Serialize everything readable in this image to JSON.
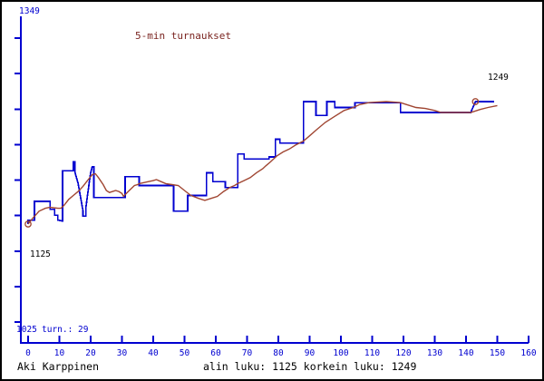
{
  "window": {
    "background": "#ffffff",
    "border_color": "#000000"
  },
  "header": {
    "title": "5-min turnaukset"
  },
  "labels": {
    "y_axis_max": "1349",
    "y_axis_min": "1025",
    "tournaments": "turn.: 29",
    "min_value_annotation": "1125",
    "last_value_annotation": "1249"
  },
  "footer": {
    "player_name": "Aki Karppinen",
    "stats": "alin luku: 1125 korkein luku: 1249"
  },
  "colors": {
    "axis_blue": "#0000d0",
    "series_blue": "#0000d0",
    "series_brown": "#a04632",
    "title_maroon": "#7a2420",
    "text_black": "#000000"
  },
  "chart_data": {
    "type": "line",
    "title": "5-min turnaukset",
    "xlabel": "",
    "ylabel": "",
    "x_axis": {
      "min": 0,
      "max": 160,
      "tick_step": 10,
      "tick_labels": [
        "0",
        "10",
        "20",
        "30",
        "40",
        "50",
        "60",
        "70",
        "80",
        "90",
        "100",
        "110",
        "120",
        "130",
        "140",
        "150",
        "160"
      ]
    },
    "y_axis": {
      "min": 1025,
      "max": 1349,
      "labeled_values": [
        1025,
        1125,
        1349
      ]
    },
    "min_rating": 1125,
    "max_rating": 1249,
    "final_rating": 1249,
    "tournament_count": 29,
    "grid": false,
    "series": [
      {
        "name": "rating",
        "color": "#0000d0",
        "points": [
          [
            0,
            1125
          ],
          [
            0,
            1129
          ],
          [
            2,
            1129
          ],
          [
            2,
            1148
          ],
          [
            7,
            1148
          ],
          [
            7,
            1140
          ],
          [
            8.5,
            1140
          ],
          [
            8.5,
            1134
          ],
          [
            9.5,
            1134
          ],
          [
            9.5,
            1129
          ],
          [
            11,
            1128
          ],
          [
            11,
            1179
          ],
          [
            14.5,
            1179
          ],
          [
            14.5,
            1188
          ],
          [
            15,
            1188
          ],
          [
            15,
            1177
          ],
          [
            16,
            1166
          ],
          [
            16.5,
            1157
          ],
          [
            17,
            1148
          ],
          [
            17.5,
            1139
          ],
          [
            17.5,
            1133
          ],
          [
            18.5,
            1133
          ],
          [
            18.5,
            1142
          ],
          [
            19,
            1154
          ],
          [
            19.5,
            1166
          ],
          [
            20,
            1177
          ],
          [
            20.5,
            1183
          ],
          [
            21,
            1183
          ],
          [
            21,
            1152
          ],
          [
            31,
            1152
          ],
          [
            31,
            1173
          ],
          [
            35.5,
            1173
          ],
          [
            35.5,
            1164
          ],
          [
            46.5,
            1164
          ],
          [
            46.5,
            1138
          ],
          [
            51,
            1138
          ],
          [
            51,
            1154
          ],
          [
            57,
            1154
          ],
          [
            57,
            1177
          ],
          [
            59,
            1177
          ],
          [
            59,
            1168
          ],
          [
            63,
            1168
          ],
          [
            63,
            1162
          ],
          [
            67,
            1162
          ],
          [
            67,
            1196
          ],
          [
            69,
            1196
          ],
          [
            69,
            1191
          ],
          [
            77,
            1191
          ],
          [
            77,
            1193
          ],
          [
            79,
            1193
          ],
          [
            79,
            1211
          ],
          [
            80.5,
            1211
          ],
          [
            80.5,
            1207
          ],
          [
            88,
            1207
          ],
          [
            88,
            1249
          ],
          [
            92,
            1249
          ],
          [
            92,
            1235
          ],
          [
            95.5,
            1235
          ],
          [
            95.5,
            1249
          ],
          [
            98,
            1249
          ],
          [
            98,
            1243
          ],
          [
            104.5,
            1243
          ],
          [
            104.5,
            1248
          ],
          [
            119,
            1248
          ],
          [
            119,
            1238
          ],
          [
            141.5,
            1238
          ],
          [
            143,
            1249
          ],
          [
            149,
            1249
          ]
        ]
      },
      {
        "name": "average",
        "color": "#a04632",
        "points": [
          [
            0,
            1125
          ],
          [
            1.5,
            1131
          ],
          [
            3.5,
            1138
          ],
          [
            5.5,
            1141
          ],
          [
            7,
            1142
          ],
          [
            9.5,
            1141
          ],
          [
            10.5,
            1141
          ],
          [
            11.5,
            1144
          ],
          [
            13,
            1150
          ],
          [
            14.5,
            1154
          ],
          [
            16,
            1158
          ],
          [
            17.5,
            1163
          ],
          [
            19,
            1169
          ],
          [
            20.5,
            1175
          ],
          [
            21.5,
            1176
          ],
          [
            22.5,
            1172
          ],
          [
            24,
            1165
          ],
          [
            25,
            1159
          ],
          [
            26,
            1157
          ],
          [
            27,
            1158
          ],
          [
            28,
            1159
          ],
          [
            29,
            1158
          ],
          [
            30,
            1156
          ],
          [
            30.5,
            1153
          ],
          [
            32,
            1158
          ],
          [
            33,
            1161
          ],
          [
            34,
            1164
          ],
          [
            35,
            1165
          ],
          [
            35.5,
            1166
          ],
          [
            37,
            1167
          ],
          [
            38.5,
            1168
          ],
          [
            40,
            1169
          ],
          [
            41,
            1170
          ],
          [
            42.5,
            1168
          ],
          [
            44,
            1166
          ],
          [
            46,
            1165
          ],
          [
            48,
            1164
          ],
          [
            50,
            1159
          ],
          [
            52,
            1154
          ],
          [
            54.5,
            1151
          ],
          [
            56.5,
            1149
          ],
          [
            58.5,
            1151
          ],
          [
            60.5,
            1153
          ],
          [
            62.5,
            1158
          ],
          [
            64.5,
            1162
          ],
          [
            66,
            1164
          ],
          [
            67,
            1166
          ],
          [
            69,
            1169
          ],
          [
            71,
            1172
          ],
          [
            73,
            1177
          ],
          [
            75,
            1181
          ],
          [
            76,
            1184
          ],
          [
            77.5,
            1188
          ],
          [
            79.5,
            1194
          ],
          [
            81.5,
            1198
          ],
          [
            83.5,
            1201
          ],
          [
            85.5,
            1205
          ],
          [
            88,
            1209
          ],
          [
            89.5,
            1213
          ],
          [
            92,
            1220
          ],
          [
            95,
            1228
          ],
          [
            98,
            1234
          ],
          [
            101,
            1240
          ],
          [
            104,
            1243
          ],
          [
            106,
            1246
          ],
          [
            109,
            1248
          ],
          [
            114.5,
            1249
          ],
          [
            119,
            1248
          ],
          [
            121,
            1246
          ],
          [
            124,
            1243
          ],
          [
            127,
            1242
          ],
          [
            130,
            1240
          ],
          [
            132,
            1238
          ],
          [
            141.5,
            1238
          ],
          [
            142.5,
            1239
          ],
          [
            144.5,
            1241
          ],
          [
            147,
            1243
          ],
          [
            150,
            1245
          ]
        ]
      }
    ],
    "markers": [
      {
        "name": "start-marker",
        "x": 0,
        "value": 1125
      },
      {
        "name": "end-marker",
        "x": 143,
        "value": 1249
      }
    ]
  }
}
